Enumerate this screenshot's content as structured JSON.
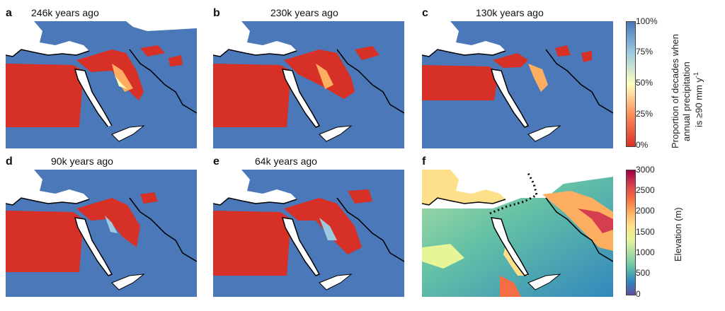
{
  "panels": [
    {
      "letter": "a",
      "title": "246k years ago"
    },
    {
      "letter": "b",
      "title": "230k years ago"
    },
    {
      "letter": "c",
      "title": "130k years ago"
    },
    {
      "letter": "d",
      "title": "90k years ago"
    },
    {
      "letter": "e",
      "title": "64k years ago"
    },
    {
      "letter": "f",
      "title": ""
    }
  ],
  "precip_colorbar": {
    "label_line1": "Proportion of decades when",
    "label_line2": "annual precipitation",
    "label_line3": "is ≥90 mm y",
    "label_sup": "-1",
    "ticks": [
      "100%",
      "75%",
      "50%",
      "25%",
      "0%"
    ],
    "colors": [
      "#4a78b8",
      "#9ecae1",
      "#ffffbf",
      "#fc8d59",
      "#d73027"
    ]
  },
  "elevation_colorbar": {
    "label": "Elevation (m)",
    "ticks": [
      "3000",
      "2500",
      "2000",
      "1500",
      "1000",
      "500",
      "0"
    ],
    "colors": [
      "#9e0142",
      "#d53e4f",
      "#f46d43",
      "#fdae61",
      "#fee08b",
      "#e6f598",
      "#abdda4",
      "#66c2a5",
      "#3288bd",
      "#5e4fa2"
    ]
  }
}
